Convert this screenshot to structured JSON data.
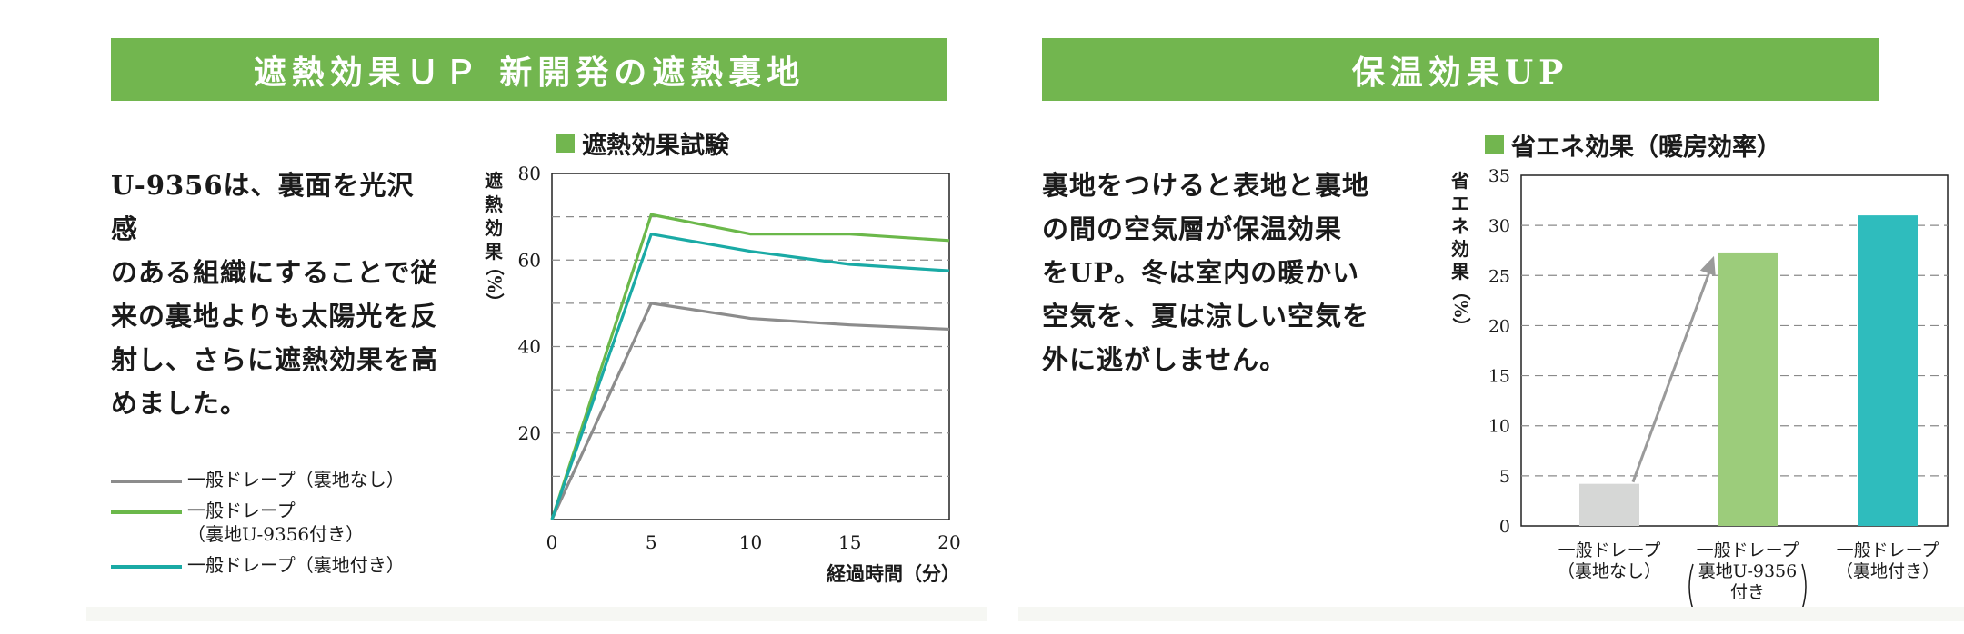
{
  "left": {
    "banner": "遮熱効果ＵＰ 新開発の遮熱裏地",
    "body": "U-9356は、裏面を光沢感\nのある組織にすることで従\n来の裏地よりも太陽光を反\n射し、さらに遮熱効果を高\nめました。",
    "chart_title": "遮熱効果試験",
    "legend": [
      {
        "label": "一般ドレープ（裏地なし）",
        "color": "#8c8c8c"
      },
      {
        "label": "一般ドレープ\n（裏地U-9356付き）",
        "color": "#6bb84a"
      },
      {
        "label": "一般ドレープ（裏地付き）",
        "color": "#1aaaa5"
      }
    ]
  },
  "right": {
    "banner": "保温効果UP",
    "body": "裏地をつけると表地と裏地\nの間の空気層が保温効果\nをUP。冬は室内の暖かい\n空気を、夏は涼しい空気を\n外に逃がしません。",
    "chart_title": "省エネ効果（暖房効率）"
  },
  "chart_data": [
    {
      "type": "line",
      "title": "遮熱効果試験",
      "xlabel": "経過時間（分）",
      "ylabel": "遮熱効果（%）",
      "x": [
        0,
        5,
        10,
        15,
        20
      ],
      "xlim": [
        0,
        20
      ],
      "ylim": [
        0,
        80
      ],
      "yticks": [
        20,
        40,
        60,
        80
      ],
      "xticks": [
        0,
        5,
        10,
        15,
        20
      ],
      "grid": "dashed horizontal every 10",
      "series": [
        {
          "name": "一般ドレープ（裏地なし）",
          "values": [
            0,
            50,
            46.5,
            45,
            44
          ],
          "color": "#8c8c8c"
        },
        {
          "name": "一般ドレープ（裏地U-9356付き）",
          "values": [
            0,
            70.5,
            66,
            66,
            64.5
          ],
          "color": "#6bb84a"
        },
        {
          "name": "一般ドレープ（裏地付き）",
          "values": [
            0,
            66,
            62,
            59,
            57.5
          ],
          "color": "#1aaaa5"
        }
      ]
    },
    {
      "type": "bar",
      "title": "省エネ効果（暖房効率）",
      "ylabel": "省エネ効果（%）",
      "ylim": [
        0,
        35
      ],
      "yticks": [
        0,
        5,
        10,
        15,
        20,
        25,
        30,
        35
      ],
      "grid": "dashed horizontal every 5",
      "categories": [
        "一般ドレープ\n（裏地なし）",
        "一般ドレープ\n裏地U-9356\n付き",
        "一般ドレープ\n（裏地付き）"
      ],
      "values": [
        4.2,
        27.3,
        31
      ],
      "colors": [
        "#d6d7d6",
        "#9ccc7b",
        "#2fbcbd"
      ],
      "annotation": "arrow from bar 1 to bar 2"
    }
  ]
}
